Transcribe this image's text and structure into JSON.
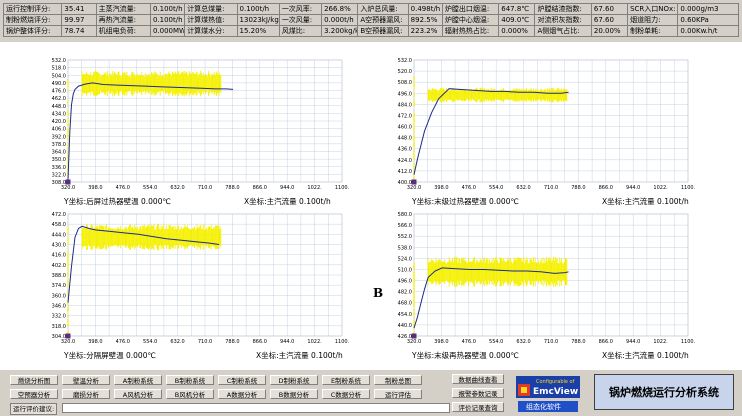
{
  "status_rows": [
    [
      [
        "运行控制评分:",
        "35.41"
      ],
      [
        "主蒸汽流量:",
        "0.100t/h"
      ],
      [
        "计算总煤量:",
        "0.100t/h"
      ],
      [
        "一次风率:",
        "266.8%"
      ],
      [
        "入炉总风量:",
        "0.498t/h"
      ],
      [
        "炉膛出口烟温:",
        "647.8℃"
      ],
      [
        "炉膛结渣指数:",
        "67.60"
      ],
      [
        "SCR入口NOx:",
        "0.000g/m3"
      ]
    ],
    [
      [
        "制粉燃烧评分:",
        "99.97"
      ],
      [
        "再热汽流量:",
        "0.100t/h"
      ],
      [
        "计算煤热值:",
        "13023kJ/kg"
      ],
      [
        "一次风量:",
        "0.000t/h"
      ],
      [
        "A空预器漏风:",
        "892.5%"
      ],
      [
        "炉膛中心烟温:",
        "409.0℃"
      ],
      [
        "对流积灰指数:",
        "67.60"
      ],
      [
        "烟道阻力:",
        "0.60KPa"
      ]
    ],
    [
      [
        "锅炉整体评分:",
        "78.74"
      ],
      [
        "机组电负荷:",
        "0.000MW"
      ],
      [
        "计算煤水分:",
        "15.20%"
      ],
      [
        "风煤比:",
        "3.200kg/kg"
      ],
      [
        "B空预器漏风:",
        "223.2%"
      ],
      [
        "辐射热热占比:",
        "0.000%"
      ],
      [
        "A侧烟气占比:",
        "20.00%"
      ],
      [
        "制粉单耗:",
        "0.00Kw.h/t"
      ]
    ]
  ],
  "charts": [
    {
      "ylabel": "Y坐标:后屏过热器壁温 0.000℃",
      "xlabel": "X坐标:主汽流量 0.100t/h",
      "xticks": [
        "320.0",
        "398.0",
        "476.0",
        "554.0",
        "632.0",
        "710.0",
        "788.0",
        "866.0",
        "944.0",
        "1022.",
        "1100."
      ],
      "yticks": [
        "532.0",
        "518.0",
        "504.0",
        "490.0",
        "476.0",
        "462.0",
        "448.0",
        "434.0",
        "420.0",
        "406.0",
        "392.0",
        "378.0",
        "364.0",
        "350.0",
        "336.0",
        "322.0",
        "308.0"
      ],
      "xlim": [
        320,
        1100
      ],
      "ylim": [
        308,
        532
      ],
      "scatter_band": {
        "x": [
          320,
          755
        ],
        "upper": 512,
        "lower": 465
      },
      "line_x": [
        320,
        325,
        330,
        335,
        340,
        350,
        370,
        390,
        420,
        460,
        500,
        540,
        580,
        620,
        660,
        700,
        740,
        770,
        790
      ],
      "line_y": [
        312,
        400,
        450,
        470,
        478,
        484,
        488,
        490,
        487,
        486,
        485,
        484,
        483,
        482,
        481,
        480,
        479,
        479,
        478
      ]
    },
    {
      "ylabel": "Y坐标:末级过热器壁温 0.000℃",
      "xlabel": "X坐标:主汽流量 0.100t/h",
      "xticks": [
        "320.0",
        "398.0",
        "476.0",
        "554.0",
        "632.0",
        "710.0",
        "788.0",
        "866.0",
        "944.0",
        "1022.",
        "1100."
      ],
      "yticks": [
        "532.0",
        "520.0",
        "508.0",
        "496.0",
        "484.0",
        "472.0",
        "460.0",
        "448.0",
        "436.0",
        "424.0",
        "412.0",
        "400.0"
      ],
      "xlim": [
        320,
        1100
      ],
      "ylim": [
        400,
        532
      ],
      "scatter_band": {
        "x": [
          320,
          755
        ],
        "upper": 502,
        "lower": 486
      },
      "line_x": [
        320,
        330,
        340,
        350,
        370,
        390,
        420,
        460,
        500,
        540,
        580,
        620,
        660,
        700,
        740,
        760
      ],
      "line_y": [
        408,
        425,
        440,
        455,
        475,
        490,
        501,
        500,
        499,
        498,
        498,
        497,
        497,
        496,
        496,
        497
      ]
    },
    {
      "ylabel": "Y坐标:分隔屏壁温 0.000℃",
      "xlabel": "X坐标:主汽流量 0.100t/h",
      "xticks": [
        "320.0",
        "398.0",
        "476.0",
        "554.0",
        "632.0",
        "710.0",
        "788.0",
        "866.0",
        "944.0",
        "1022.",
        "1100."
      ],
      "yticks": [
        "472.0",
        "458.0",
        "444.0",
        "430.0",
        "416.0",
        "402.0",
        "388.0",
        "374.0",
        "360.0",
        "346.0",
        "332.0",
        "318.0",
        "304.0"
      ],
      "xlim": [
        320,
        1100
      ],
      "ylim": [
        304,
        472
      ],
      "scatter_band": {
        "x": [
          320,
          755
        ],
        "upper": 458,
        "lower": 422
      },
      "line_x": [
        320,
        330,
        340,
        350,
        360,
        380,
        400,
        440,
        480,
        520,
        560,
        600,
        640,
        680,
        720,
        750
      ],
      "line_y": [
        350,
        400,
        440,
        452,
        455,
        452,
        450,
        448,
        446,
        444,
        441,
        438,
        436,
        434,
        432,
        430
      ]
    },
    {
      "ylabel": "Y坐标:末级再热器壁温 0.000℃",
      "xlabel": "X坐标:主汽流量 0.100t/h",
      "xticks": [
        "320.0",
        "398.0",
        "476.0",
        "554.0",
        "632.0",
        "710.0",
        "788.0",
        "866.0",
        "944.0",
        "1022.",
        "1100."
      ],
      "yticks": [
        "580.0",
        "566.0",
        "552.0",
        "538.0",
        "524.0",
        "510.0",
        "496.0",
        "482.0",
        "468.0",
        "454.0",
        "440.0",
        "426.0"
      ],
      "xlim": [
        320,
        1100
      ],
      "ylim": [
        426,
        580
      ],
      "scatter_band": {
        "x": [
          320,
          755
        ],
        "upper": 526,
        "lower": 488
      },
      "line_x": [
        320,
        330,
        340,
        350,
        360,
        380,
        400,
        440,
        480,
        520,
        560,
        600,
        640,
        680,
        720,
        750,
        760
      ],
      "line_y": [
        436,
        450,
        468,
        485,
        500,
        508,
        512,
        511,
        510,
        510,
        509,
        508,
        508,
        507,
        505,
        506,
        507
      ]
    }
  ],
  "b_mark": "B",
  "buttons_row1": [
    "燃烧分析图",
    "壁温分析",
    "A制粉系统",
    "B制粉系统",
    "C制粉系统",
    "D制粉系统",
    "E制粉系统",
    "制粉总图"
  ],
  "buttons_row2": [
    "空预器分析",
    "磨损分析",
    "A风机分析",
    "B风机分析",
    "A数据分析",
    "B数据分析",
    "C数据分析",
    "运行评估"
  ],
  "side_buttons": [
    "数据曲线查看",
    "报警参数记录",
    "评价记录查询"
  ],
  "advice_label": "运行评价建议:",
  "advice_value": "",
  "logo_top": "Configurable of",
  "logo_brand": "EmcView",
  "logo_bottom": "组态化软件",
  "system_title": "锅炉燃烧运行分析系统",
  "colors": {
    "scatter": "#f5f000",
    "line": "#1c2a8c",
    "grid": "#b8c8d8",
    "marker": "#5a2d82"
  }
}
